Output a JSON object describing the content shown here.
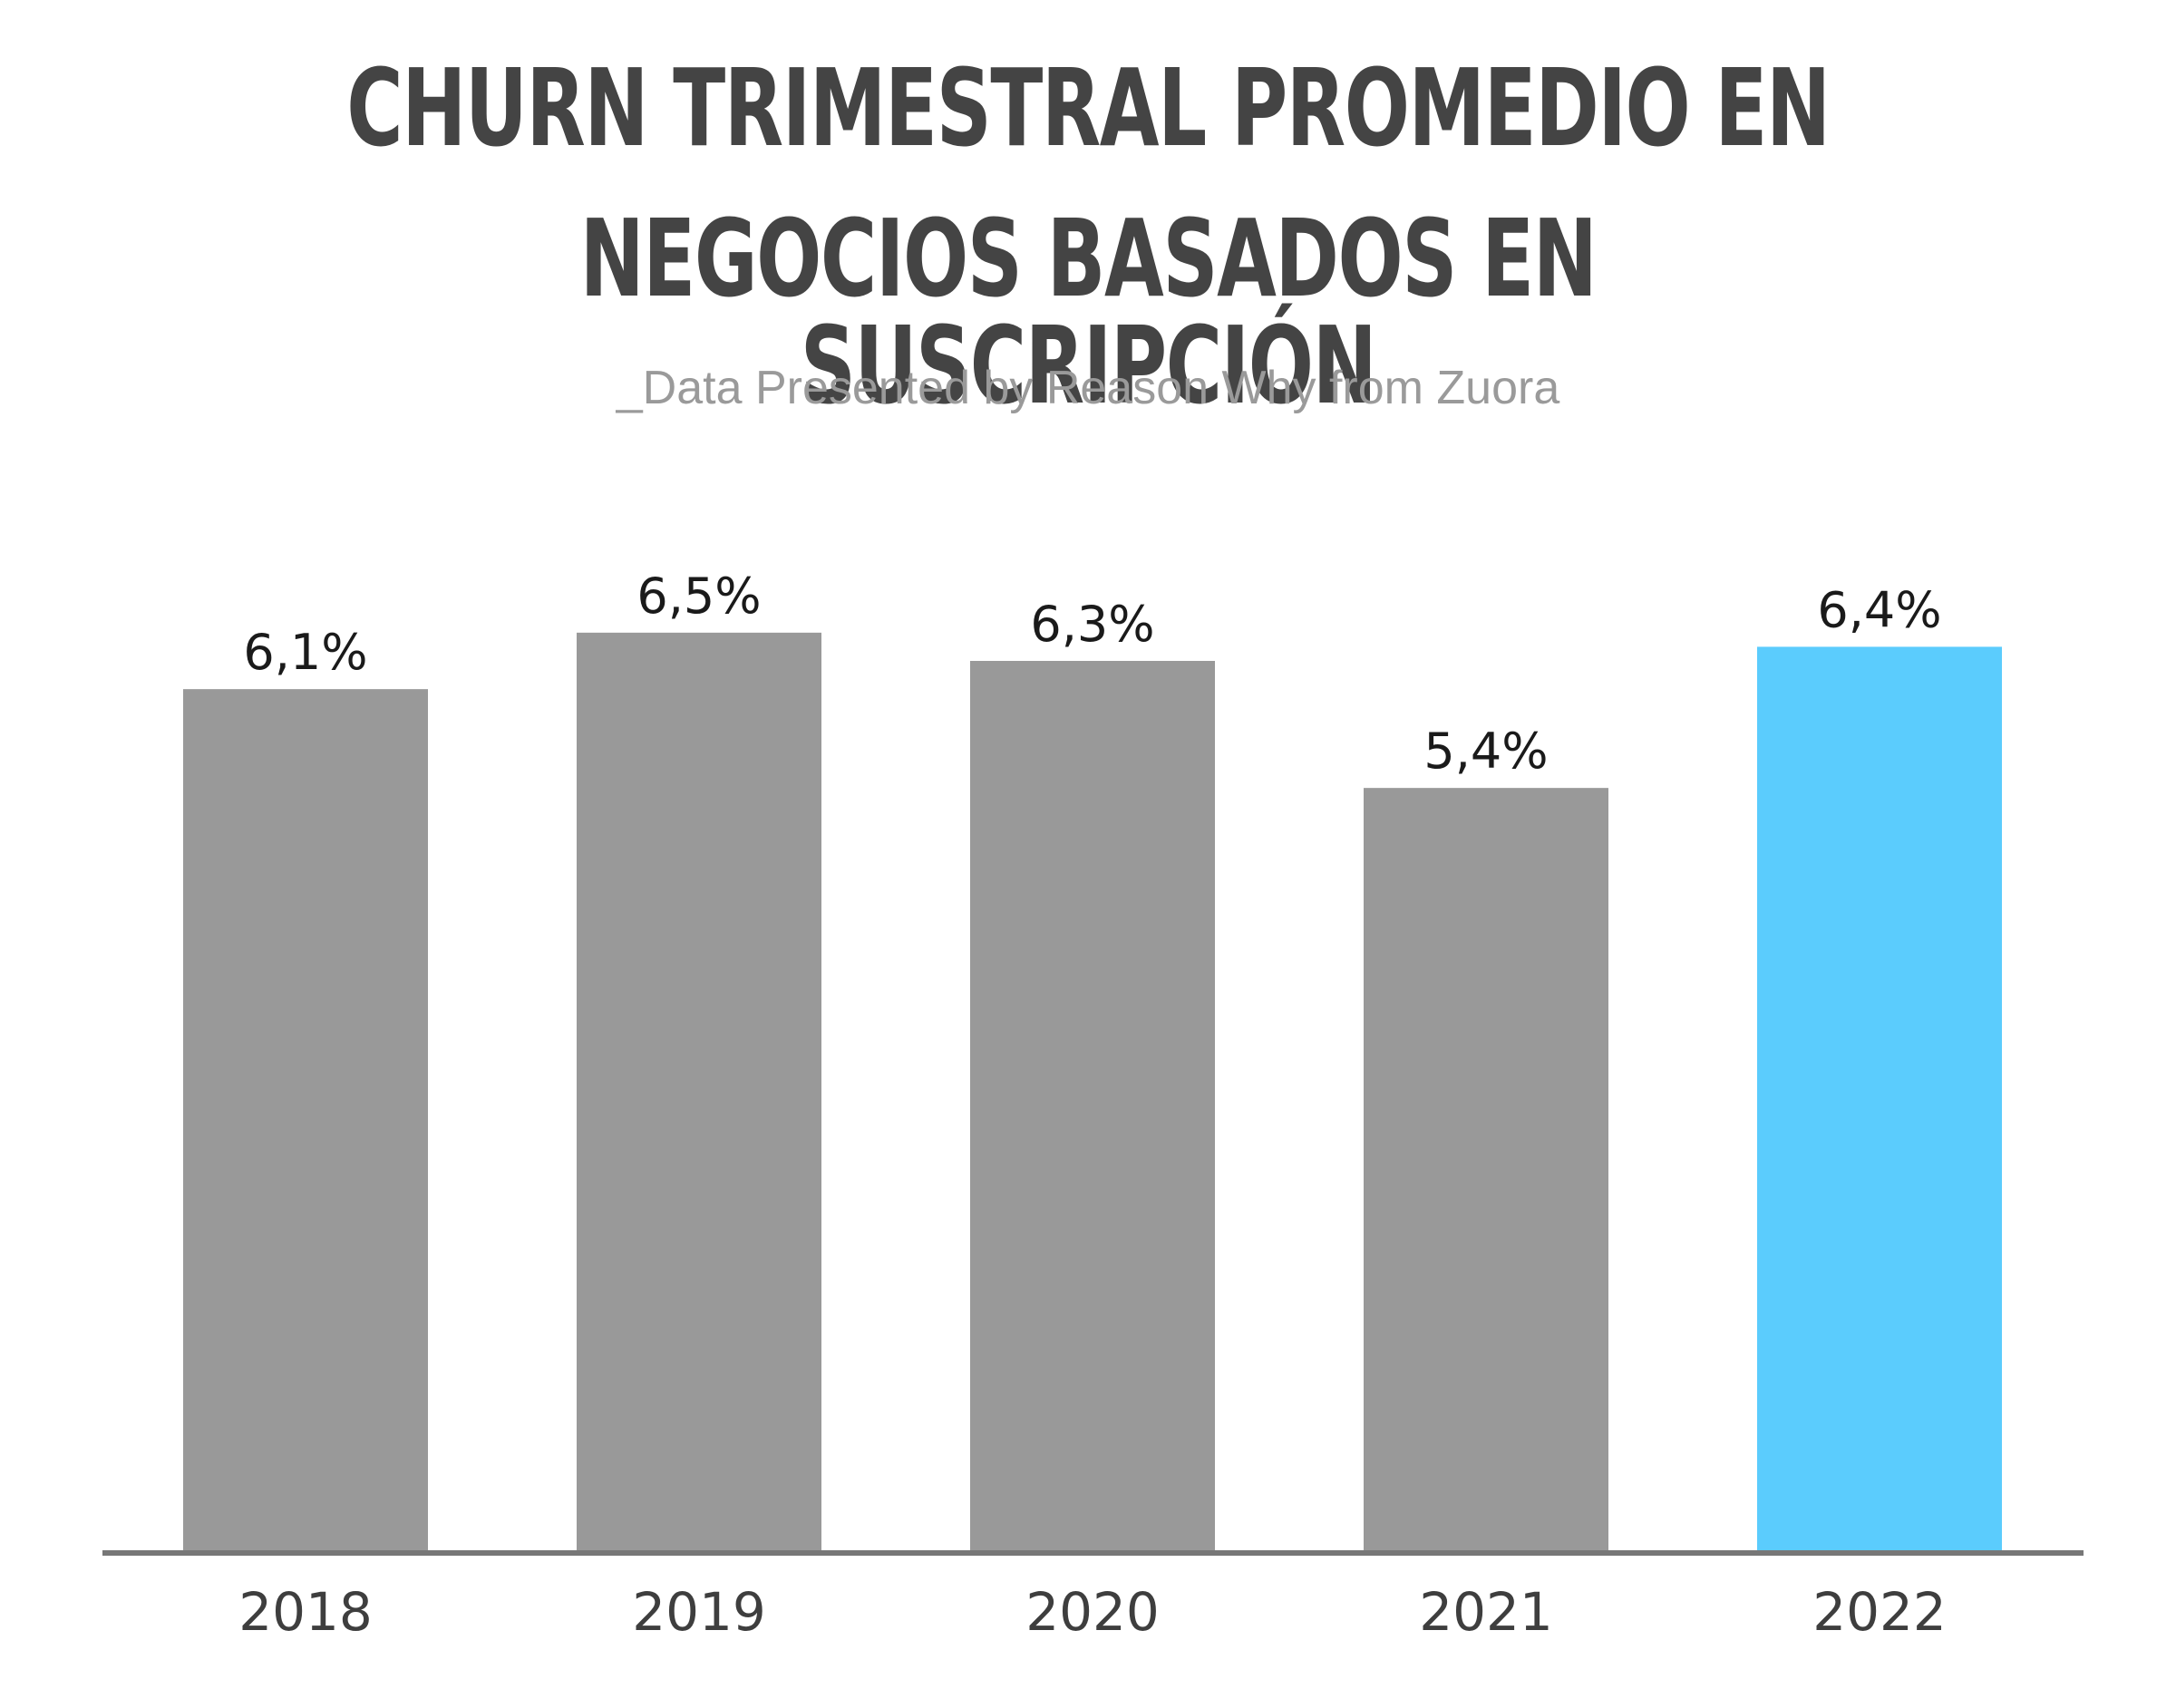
{
  "header": {
    "title_line1": "CHURN TRIMESTRAL PROMEDIO EN",
    "title_line2": "NEGOCIOS BASADOS EN SUSCRIPCIÓN",
    "subtitle": "_Data Presented by Reason Why from Zuora"
  },
  "colors": {
    "bar_default": "#999999",
    "bar_highlight": "#5bccfd",
    "axis": "#777777",
    "title": "#444444",
    "subtitle": "#9a9a9a"
  },
  "chart_data": {
    "type": "bar",
    "categories": [
      "2018",
      "2019",
      "2020",
      "2021",
      "2022"
    ],
    "values": [
      6.1,
      6.5,
      6.3,
      5.4,
      6.4
    ],
    "value_labels": [
      "6,1%",
      "6,5%",
      "6,3%",
      "5,4%",
      "6,4%"
    ],
    "highlight_index": 4,
    "title": "CHURN TRIMESTRAL PROMEDIO EN NEGOCIOS BASADOS EN SUSCRIPCIÓN",
    "subtitle": "_Data Presented by Reason Why from Zuora",
    "xlabel": "",
    "ylabel": "",
    "ylim": [
      0,
      7
    ],
    "grid": false,
    "legend": "none"
  }
}
